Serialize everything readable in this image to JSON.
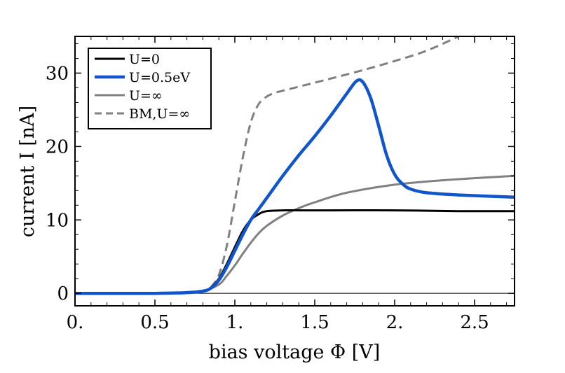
{
  "chart_data": {
    "type": "line",
    "title": "",
    "xlabel": "bias voltage Φ [V]",
    "ylabel": "current I [nA]",
    "xlim": [
      0,
      2.75
    ],
    "ylim": [
      -1.7,
      35
    ],
    "x_ticks": [
      {
        "value": 0.0,
        "label": "0."
      },
      {
        "value": 0.5,
        "label": "0.5"
      },
      {
        "value": 1.0,
        "label": "1."
      },
      {
        "value": 1.5,
        "label": "1.5"
      },
      {
        "value": 2.0,
        "label": "2."
      },
      {
        "value": 2.5,
        "label": "2.5"
      }
    ],
    "y_ticks": [
      {
        "value": 0,
        "label": "0"
      },
      {
        "value": 10,
        "label": "10"
      },
      {
        "value": 20,
        "label": "20"
      },
      {
        "value": 30,
        "label": "30"
      }
    ],
    "legend_position": "top-left",
    "zero_line": true,
    "series": [
      {
        "name": "U=0",
        "color": "#000000",
        "style": "solid",
        "x": [
          0,
          0.5,
          0.7,
          0.8,
          0.85,
          0.9,
          0.95,
          1.0,
          1.05,
          1.1,
          1.15,
          1.2,
          1.3,
          1.4,
          1.6,
          2.0,
          2.4,
          2.75
        ],
        "y": [
          0,
          0,
          0.1,
          0.3,
          0.8,
          2.0,
          4.0,
          6.3,
          8.5,
          10.0,
          10.8,
          11.2,
          11.3,
          11.3,
          11.3,
          11.3,
          11.2,
          11.2
        ]
      },
      {
        "name": "U=0.5eV",
        "color": "#1155cc",
        "style": "solid",
        "x": [
          0,
          0.5,
          0.7,
          0.8,
          0.85,
          0.9,
          0.95,
          1.0,
          1.05,
          1.1,
          1.15,
          1.2,
          1.3,
          1.4,
          1.5,
          1.6,
          1.7,
          1.76,
          1.8,
          1.85,
          1.9,
          1.95,
          2.0,
          2.05,
          2.1,
          2.2,
          2.4,
          2.75
        ],
        "y": [
          0,
          0,
          0.1,
          0.3,
          0.7,
          1.8,
          3.6,
          5.8,
          8.0,
          10.0,
          11.5,
          13.0,
          16.0,
          18.8,
          21.4,
          24.2,
          27.2,
          28.9,
          28.8,
          26.6,
          22.8,
          18.8,
          16.2,
          14.9,
          14.2,
          13.7,
          13.4,
          13.1
        ]
      },
      {
        "name": "U=∞",
        "color": "#808080",
        "style": "solid",
        "x": [
          0,
          0.5,
          0.7,
          0.8,
          0.9,
          0.95,
          1.0,
          1.05,
          1.1,
          1.15,
          1.2,
          1.3,
          1.4,
          1.5,
          1.7,
          2.0,
          2.3,
          2.75
        ],
        "y": [
          0,
          0,
          0.1,
          0.3,
          1.2,
          2.4,
          3.8,
          5.4,
          6.9,
          8.2,
          9.2,
          10.6,
          11.6,
          12.4,
          13.7,
          14.8,
          15.4,
          16.0
        ]
      },
      {
        "name": "BM,U=∞",
        "color": "#808080",
        "style": "dashed",
        "x": [
          0.85,
          0.9,
          0.95,
          1.0,
          1.05,
          1.1,
          1.15,
          1.2,
          1.25,
          1.3,
          1.5,
          1.8,
          2.1,
          2.25,
          2.4
        ],
        "y": [
          0.8,
          2.5,
          6.5,
          12.5,
          18.5,
          23.3,
          25.8,
          26.8,
          27.3,
          27.6,
          28.7,
          30.4,
          32.3,
          33.5,
          35.0
        ]
      }
    ]
  }
}
